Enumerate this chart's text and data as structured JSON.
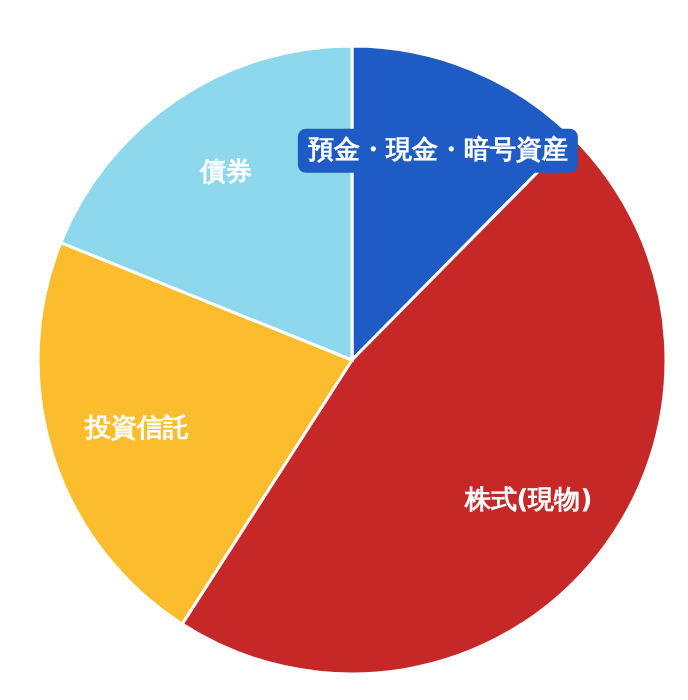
{
  "chart_data": {
    "type": "pie",
    "categories": [
      "預金・現金・暗号資産",
      "株式(現物)",
      "投資信託",
      "債券"
    ],
    "values": [
      12.4,
      46.7,
      22,
      18.9
    ],
    "colors": [
      "#1f5bc4",
      "#c62828",
      "#fbbd2e",
      "#8dd8ec"
    ],
    "legend": false
  }
}
